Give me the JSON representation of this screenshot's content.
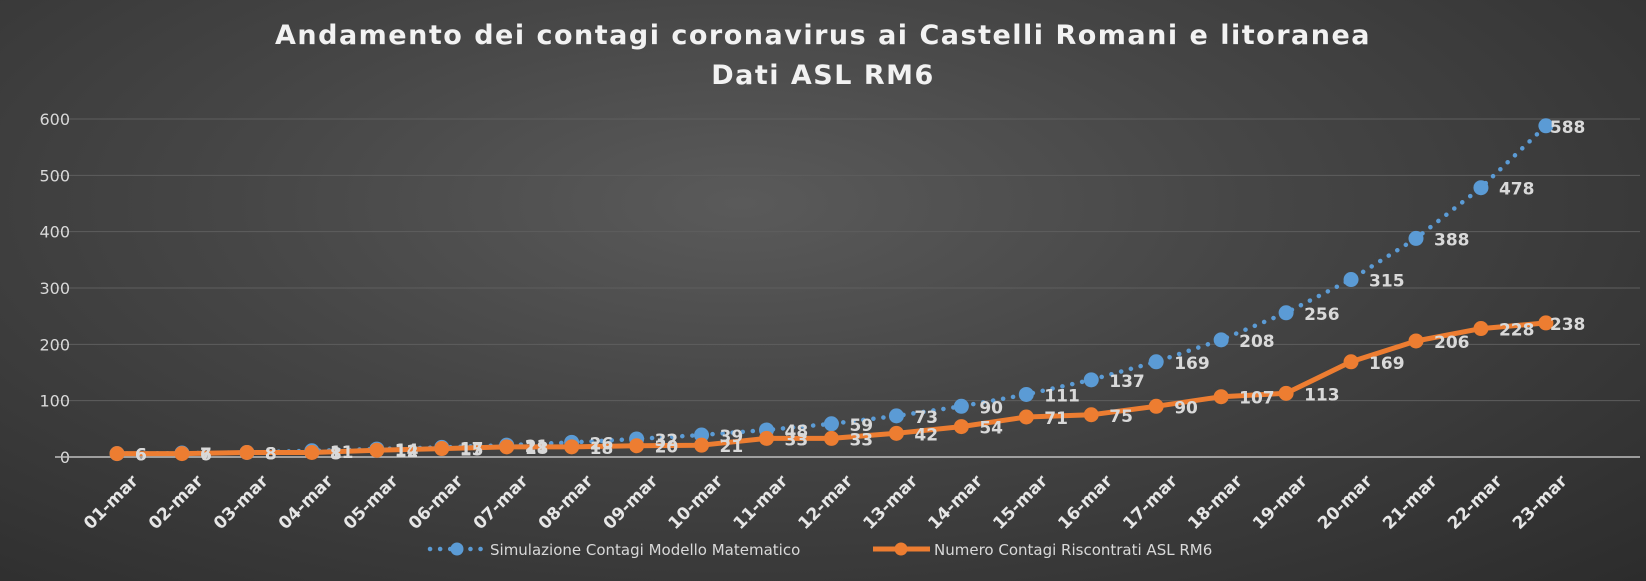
{
  "chart_data": {
    "type": "line",
    "title": "Andamento dei contagi coronavirus ai Castelli Romani e litoranea",
    "subtitle": "Dati ASL RM6",
    "xlabel": "",
    "ylabel": "",
    "ylim": [
      0,
      600
    ],
    "yticks": [
      "0",
      "100",
      "200",
      "300",
      "400",
      "500",
      "600"
    ],
    "grid": true,
    "legend_position": "bottom",
    "categories": [
      "01-mar",
      "02-mar",
      "03-mar",
      "04-mar",
      "05-mar",
      "06-mar",
      "07-mar",
      "08-mar",
      "09-mar",
      "10-mar",
      "11-mar",
      "12-mar",
      "13-mar",
      "14-mar",
      "15-mar",
      "16-mar",
      "17-mar",
      "18-mar",
      "19-mar",
      "20-mar",
      "21-mar",
      "22-mar",
      "23-mar"
    ],
    "series": [
      {
        "name": "Simulazione Contagi Modello Matematico",
        "color": "#5b9bd5",
        "style": "dotted",
        "values": [
          6,
          7,
          8,
          11,
          14,
          17,
          21,
          26,
          32,
          39,
          48,
          59,
          73,
          90,
          111,
          137,
          169,
          208,
          256,
          315,
          388,
          478,
          588
        ]
      },
      {
        "name": "Numero Contagi Riscontrati ASL RM6",
        "color": "#ed7d31",
        "style": "solid",
        "values": [
          6,
          6,
          8,
          8,
          12,
          15,
          18,
          18,
          20,
          21,
          33,
          33,
          42,
          54,
          71,
          75,
          90,
          107,
          113,
          169,
          206,
          228,
          238
        ]
      }
    ]
  }
}
